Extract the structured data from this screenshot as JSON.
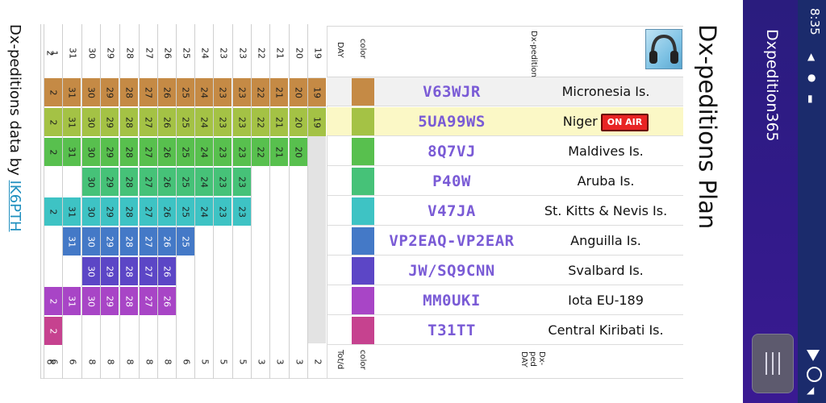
{
  "status": {
    "time": "8:35"
  },
  "app": {
    "title": "Dxpedition365"
  },
  "plan": {
    "title": "Dx-peditions Plan"
  },
  "header": {
    "dxpeditions": "Dx-peditions",
    "color": "color",
    "day": "DAY",
    "dxped_day": "Dx-ped DAY",
    "totd": "Tot/d",
    "day_numbers": [
      "19",
      "20",
      "21",
      "22",
      "23",
      "23",
      "24",
      "25",
      "26",
      "27",
      "28",
      "29",
      "30",
      "31",
      "1",
      "2"
    ],
    "totals": [
      "2",
      "3",
      "3",
      "3",
      "5",
      "5",
      "5",
      "6",
      "8",
      "8",
      "8",
      "8",
      "8",
      "6",
      "6",
      "6"
    ]
  },
  "colors": {
    "Micronesia": "#c58a45",
    "Niger": "#a4c245",
    "Maldives": "#58c04e",
    "Aruba": "#46c278",
    "StKitts": "#3ec3c4",
    "Anguilla": "#4479c7",
    "Svalbard": "#5c46c6",
    "Iota": "#a845c6",
    "Kiribati": "#c6428f"
  },
  "dxpeditions": [
    {
      "callsign": "V63WJR",
      "location": "Micronesia Is.",
      "color_key": "Micronesia",
      "on_air": false,
      "days": [
        "19",
        "20",
        "21",
        "22",
        "23",
        "23",
        "24",
        "25",
        "26",
        "27",
        "28",
        "29",
        "30",
        "31",
        "1",
        "2"
      ]
    },
    {
      "callsign": "5UA99WS",
      "location": "Niger",
      "color_key": "Niger",
      "on_air": true,
      "on_air_label": "ON AIR",
      "days": [
        "19",
        "20",
        "21",
        "22",
        "23",
        "23",
        "24",
        "25",
        "26",
        "27",
        "28",
        "29",
        "30",
        "31",
        "1",
        "2"
      ]
    },
    {
      "callsign": "8Q7VJ",
      "location": "Maldives Is.",
      "color_key": "Maldives",
      "on_air": false,
      "days": [
        "",
        "20",
        "21",
        "22",
        "23",
        "23",
        "24",
        "25",
        "26",
        "27",
        "28",
        "29",
        "30",
        "31",
        "1",
        "2"
      ]
    },
    {
      "callsign": "P40W",
      "location": "Aruba Is.",
      "color_key": "Aruba",
      "on_air": false,
      "days": [
        "",
        "",
        "",
        "",
        "23",
        "23",
        "24",
        "25",
        "26",
        "27",
        "28",
        "29",
        "30",
        "",
        "",
        ""
      ]
    },
    {
      "callsign": "V47JA",
      "location": "St. Kitts & Nevis Is.",
      "color_key": "StKitts",
      "on_air": false,
      "days": [
        "",
        "",
        "",
        "",
        "23",
        "23",
        "24",
        "25",
        "26",
        "27",
        "28",
        "29",
        "30",
        "31",
        "1",
        "2"
      ]
    },
    {
      "callsign": "VP2EAQ-VP2EAR",
      "location": "Anguilla Is.",
      "color_key": "Anguilla",
      "on_air": false,
      "days": [
        "",
        "",
        "",
        "",
        "",
        "",
        "",
        "25",
        "26",
        "27",
        "28",
        "29",
        "30",
        "31",
        "",
        ""
      ]
    },
    {
      "callsign": "JW/SQ9CNN",
      "location": "Svalbard Is.",
      "color_key": "Svalbard",
      "on_air": false,
      "days": [
        "",
        "",
        "",
        "",
        "",
        "",
        "",
        "",
        "26",
        "27",
        "28",
        "29",
        "30",
        "",
        "",
        ""
      ]
    },
    {
      "callsign": "MM0UKI",
      "location": "Iota EU-189",
      "color_key": "Iota",
      "on_air": false,
      "days": [
        "",
        "",
        "",
        "",
        "",
        "",
        "",
        "",
        "26",
        "27",
        "28",
        "29",
        "30",
        "31",
        "1",
        "2"
      ]
    },
    {
      "callsign": "T31TT",
      "location": "Central Kiribati Is.",
      "color_key": "Kiribati",
      "on_air": false,
      "days": [
        "",
        "",
        "",
        "",
        "",
        "",
        "",
        "",
        "",
        "",
        "",
        "",
        "",
        "",
        "1",
        "2"
      ]
    }
  ],
  "footer": {
    "prefix": "Dx-peditions data by ",
    "link": "IK6PTH"
  }
}
